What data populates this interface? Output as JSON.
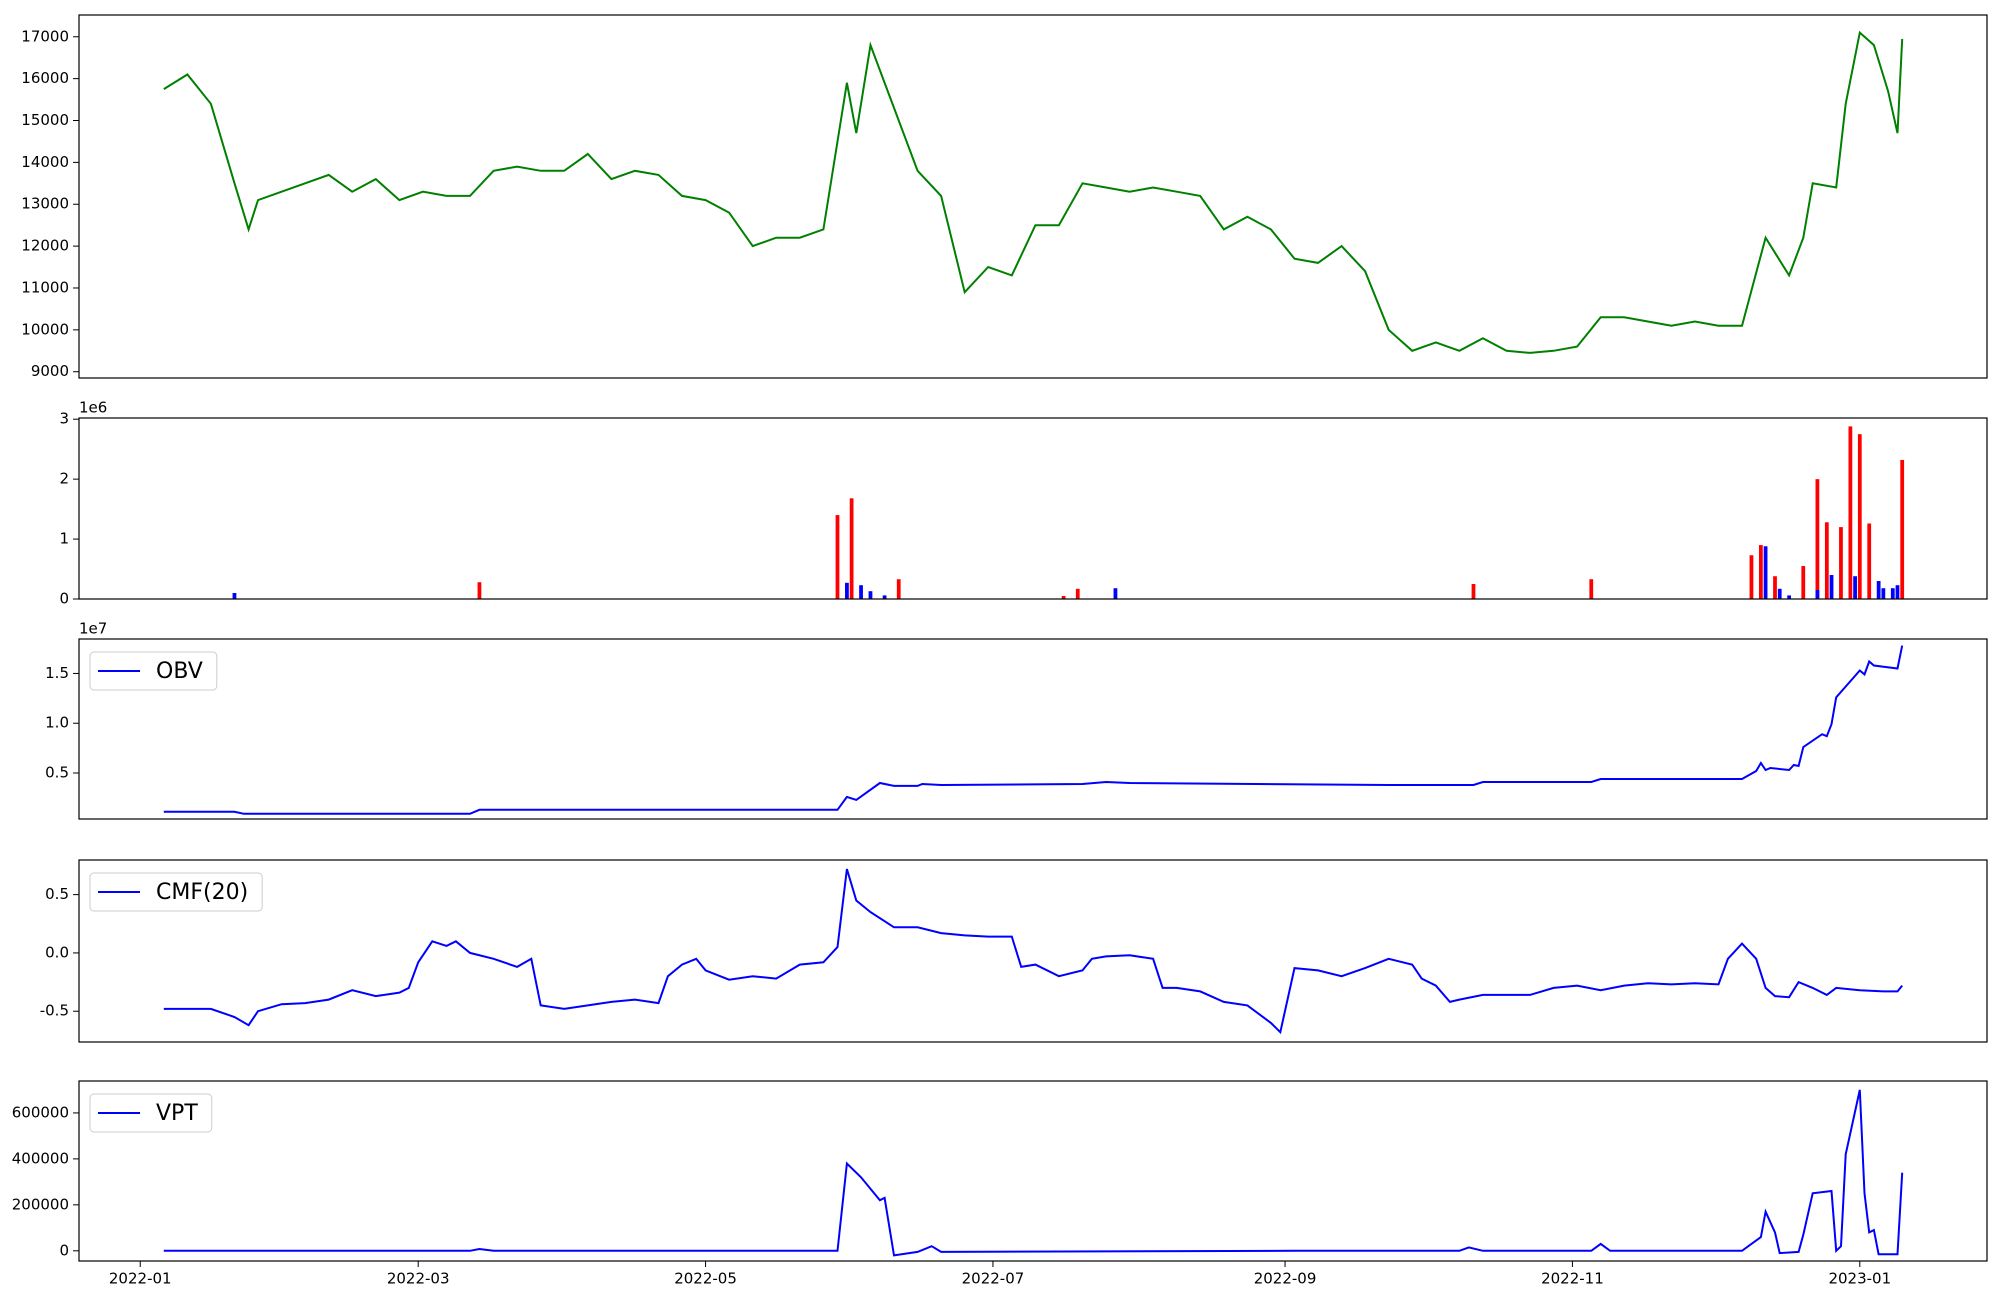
{
  "chart_data": [
    {
      "type": "line",
      "xlim": [
        -13,
        392
      ],
      "ylim": [
        8850,
        17520
      ],
      "yticks": [
        9000,
        10000,
        11000,
        12000,
        13000,
        14000,
        15000,
        16000,
        17000
      ],
      "x": [
        5,
        10,
        15,
        20,
        23,
        25,
        30,
        35,
        40,
        45,
        50,
        55,
        60,
        65,
        70,
        75,
        80,
        85,
        90,
        95,
        100,
        105,
        110,
        115,
        120,
        125,
        130,
        135,
        140,
        145,
        150,
        152,
        155,
        160,
        165,
        170,
        175,
        180,
        185,
        190,
        195,
        200,
        205,
        210,
        215,
        220,
        225,
        230,
        235,
        240,
        245,
        250,
        255,
        260,
        265,
        270,
        275,
        280,
        285,
        290,
        295,
        300,
        305,
        310,
        315,
        320,
        325,
        330,
        335,
        340,
        345,
        350,
        353,
        355,
        360,
        362,
        365,
        368,
        371,
        373,
        374
      ],
      "series": [
        {
          "color": "#008000",
          "values": [
            15750,
            16100,
            15400,
            13500,
            12400,
            13100,
            13300,
            13500,
            13700,
            13300,
            13600,
            13100,
            13300,
            13200,
            13200,
            13800,
            13900,
            13800,
            13800,
            14200,
            13600,
            13800,
            13700,
            13200,
            13100,
            12800,
            12000,
            12200,
            12200,
            12400,
            15900,
            14700,
            16800,
            15300,
            13800,
            13200,
            10900,
            11500,
            11300,
            12500,
            12500,
            13500,
            13400,
            13300,
            13400,
            13300,
            13200,
            12400,
            12700,
            12400,
            11700,
            11600,
            12000,
            11400,
            10000,
            9500,
            9700,
            9500,
            9800,
            9500,
            9450,
            9500,
            9600,
            10300,
            10300,
            10200,
            10100,
            10200,
            10100,
            10100,
            12200,
            11300,
            12200,
            13500,
            13400,
            15400,
            17100,
            16800,
            15700,
            14700,
            16950
          ]
        }
      ]
    },
    {
      "type": "bar",
      "xlim": [
        -13,
        392
      ],
      "ylim": [
        0,
        3020000
      ],
      "offset_label": "1e6",
      "yticks": [
        {
          "value": 0,
          "label": "0"
        },
        {
          "value": 1000000,
          "label": "1"
        },
        {
          "value": 2000000,
          "label": "2"
        },
        {
          "value": 3000000,
          "label": "3"
        }
      ],
      "series": [
        {
          "color": "#ff0000",
          "x": [
            72,
            148,
            151,
            161,
            196,
            199,
            283,
            308,
            342,
            344,
            347,
            353,
            356,
            358,
            361,
            363,
            365,
            367,
            374
          ],
          "values": [
            280000,
            1400000,
            1680000,
            330000,
            50000,
            170000,
            250000,
            330000,
            730000,
            900000,
            380000,
            550000,
            2000000,
            1280000,
            1200000,
            2880000,
            2750000,
            1260000,
            2320000
          ]
        },
        {
          "color": "#0000ff",
          "x": [
            20,
            150,
            153,
            155,
            158,
            207,
            345,
            348,
            350,
            356,
            359,
            364,
            369,
            370,
            372,
            373
          ],
          "values": [
            100000,
            270000,
            230000,
            130000,
            60000,
            180000,
            880000,
            170000,
            60000,
            150000,
            400000,
            380000,
            300000,
            180000,
            180000,
            230000
          ]
        }
      ]
    },
    {
      "type": "line",
      "xlim": [
        -13,
        392
      ],
      "ylim": [
        380000,
        18460000
      ],
      "offset_label": "1e7",
      "legend": "upper left",
      "yticks": [
        {
          "value": 5000000,
          "label": "0.5"
        },
        {
          "value": 10000000,
          "label": "1.0"
        },
        {
          "value": 15000000,
          "label": "1.5"
        }
      ],
      "x": [
        5,
        20,
        22,
        70,
        72,
        148,
        150,
        152,
        157,
        160,
        165,
        166,
        170,
        200,
        205,
        210,
        265,
        283,
        285,
        308,
        310,
        340,
        343,
        344,
        345,
        346,
        350,
        351,
        352,
        353,
        357,
        358,
        359,
        360,
        365,
        366,
        367,
        368,
        373,
        374
      ],
      "series": [
        {
          "name": "OBV",
          "color": "#0000ff",
          "values": [
            1100000,
            1100000,
            900000,
            900000,
            1300000,
            1300000,
            2600000,
            2300000,
            4000000,
            3700000,
            3700000,
            3900000,
            3800000,
            3900000,
            4100000,
            4000000,
            3800000,
            3800000,
            4100000,
            4100000,
            4400000,
            4400000,
            5200000,
            6000000,
            5300000,
            5500000,
            5300000,
            5800000,
            5700000,
            7600000,
            8900000,
            8700000,
            9900000,
            12600000,
            15300000,
            14900000,
            16200000,
            15800000,
            15500000,
            17800000
          ]
        }
      ]
    },
    {
      "type": "line",
      "xlim": [
        -13,
        392
      ],
      "ylim": [
        -0.764,
        0.797
      ],
      "legend": "upper left",
      "yticks": [
        -0.5,
        {
          "value": 0,
          "label": "0.0"
        },
        0.5
      ],
      "x": [
        5,
        10,
        15,
        20,
        23,
        25,
        30,
        35,
        40,
        45,
        50,
        55,
        57,
        59,
        62,
        65,
        67,
        70,
        75,
        80,
        83,
        85,
        90,
        95,
        100,
        105,
        110,
        112,
        115,
        118,
        120,
        125,
        130,
        135,
        140,
        145,
        148,
        150,
        152,
        155,
        160,
        165,
        170,
        175,
        180,
        185,
        187,
        190,
        195,
        200,
        202,
        205,
        210,
        215,
        217,
        220,
        225,
        230,
        235,
        240,
        242,
        245,
        250,
        255,
        260,
        265,
        270,
        272,
        275,
        278,
        280,
        285,
        290,
        295,
        300,
        305,
        310,
        315,
        320,
        325,
        330,
        335,
        337,
        340,
        343,
        345,
        347,
        350,
        352,
        355,
        358,
        360,
        365,
        370,
        373,
        374
      ],
      "series": [
        {
          "name": "CMF(20)",
          "color": "#0000ff",
          "values": [
            -0.48,
            -0.48,
            -0.48,
            -0.55,
            -0.62,
            -0.5,
            -0.44,
            -0.43,
            -0.4,
            -0.32,
            -0.37,
            -0.34,
            -0.3,
            -0.08,
            0.1,
            0.06,
            0.1,
            0,
            -0.05,
            -0.12,
            -0.05,
            -0.45,
            -0.48,
            -0.45,
            -0.42,
            -0.4,
            -0.43,
            -0.2,
            -0.1,
            -0.05,
            -0.15,
            -0.23,
            -0.2,
            -0.22,
            -0.1,
            -0.08,
            0.05,
            0.72,
            0.45,
            0.35,
            0.22,
            0.22,
            0.17,
            0.15,
            0.14,
            0.14,
            -0.12,
            -0.1,
            -0.2,
            -0.15,
            -0.05,
            -0.03,
            -0.02,
            -0.05,
            -0.3,
            -0.3,
            -0.33,
            -0.42,
            -0.45,
            -0.6,
            -0.68,
            -0.13,
            -0.15,
            -0.2,
            -0.13,
            -0.05,
            -0.1,
            -0.22,
            -0.28,
            -0.42,
            -0.4,
            -0.36,
            -0.36,
            -0.36,
            -0.3,
            -0.28,
            -0.32,
            -0.28,
            -0.26,
            -0.27,
            -0.26,
            -0.27,
            -0.05,
            0.08,
            -0.05,
            -0.3,
            -0.37,
            -0.38,
            -0.25,
            -0.3,
            -0.36,
            -0.3,
            -0.32,
            -0.33,
            -0.33,
            -0.28
          ]
        }
      ]
    },
    {
      "type": "line",
      "xlim": [
        -13,
        392
      ],
      "ylim": [
        -44400,
        738900
      ],
      "legend": "upper left",
      "yticks": [
        0,
        200000,
        400000,
        600000
      ],
      "xticks": [
        {
          "value": 0,
          "label": "2022-01"
        },
        {
          "value": 59,
          "label": "2022-03"
        },
        {
          "value": 120,
          "label": "2022-05"
        },
        {
          "value": 181,
          "label": "2022-07"
        },
        {
          "value": 243,
          "label": "2022-09"
        },
        {
          "value": 304,
          "label": "2022-11"
        },
        {
          "value": 365,
          "label": "2023-01"
        }
      ],
      "x": [
        5,
        70,
        72,
        75,
        148,
        150,
        153,
        157,
        158,
        160,
        165,
        168,
        170,
        245,
        280,
        282,
        285,
        308,
        310,
        312,
        340,
        344,
        345,
        347,
        348,
        352,
        353,
        355,
        359,
        360,
        361,
        362,
        365,
        366,
        367,
        368,
        369,
        373,
        374
      ],
      "series": [
        {
          "name": "VPT",
          "color": "#0000ff",
          "values": [
            0,
            0,
            8000,
            0,
            0,
            380000,
            320000,
            220000,
            230000,
            -20000,
            -5000,
            20000,
            -5000,
            0,
            0,
            15000,
            0,
            0,
            30000,
            0,
            0,
            60000,
            170000,
            80000,
            -10000,
            -5000,
            70000,
            250000,
            260000,
            0,
            20000,
            420000,
            700000,
            250000,
            80000,
            90000,
            -15000,
            -15000,
            340000
          ]
        }
      ]
    }
  ]
}
